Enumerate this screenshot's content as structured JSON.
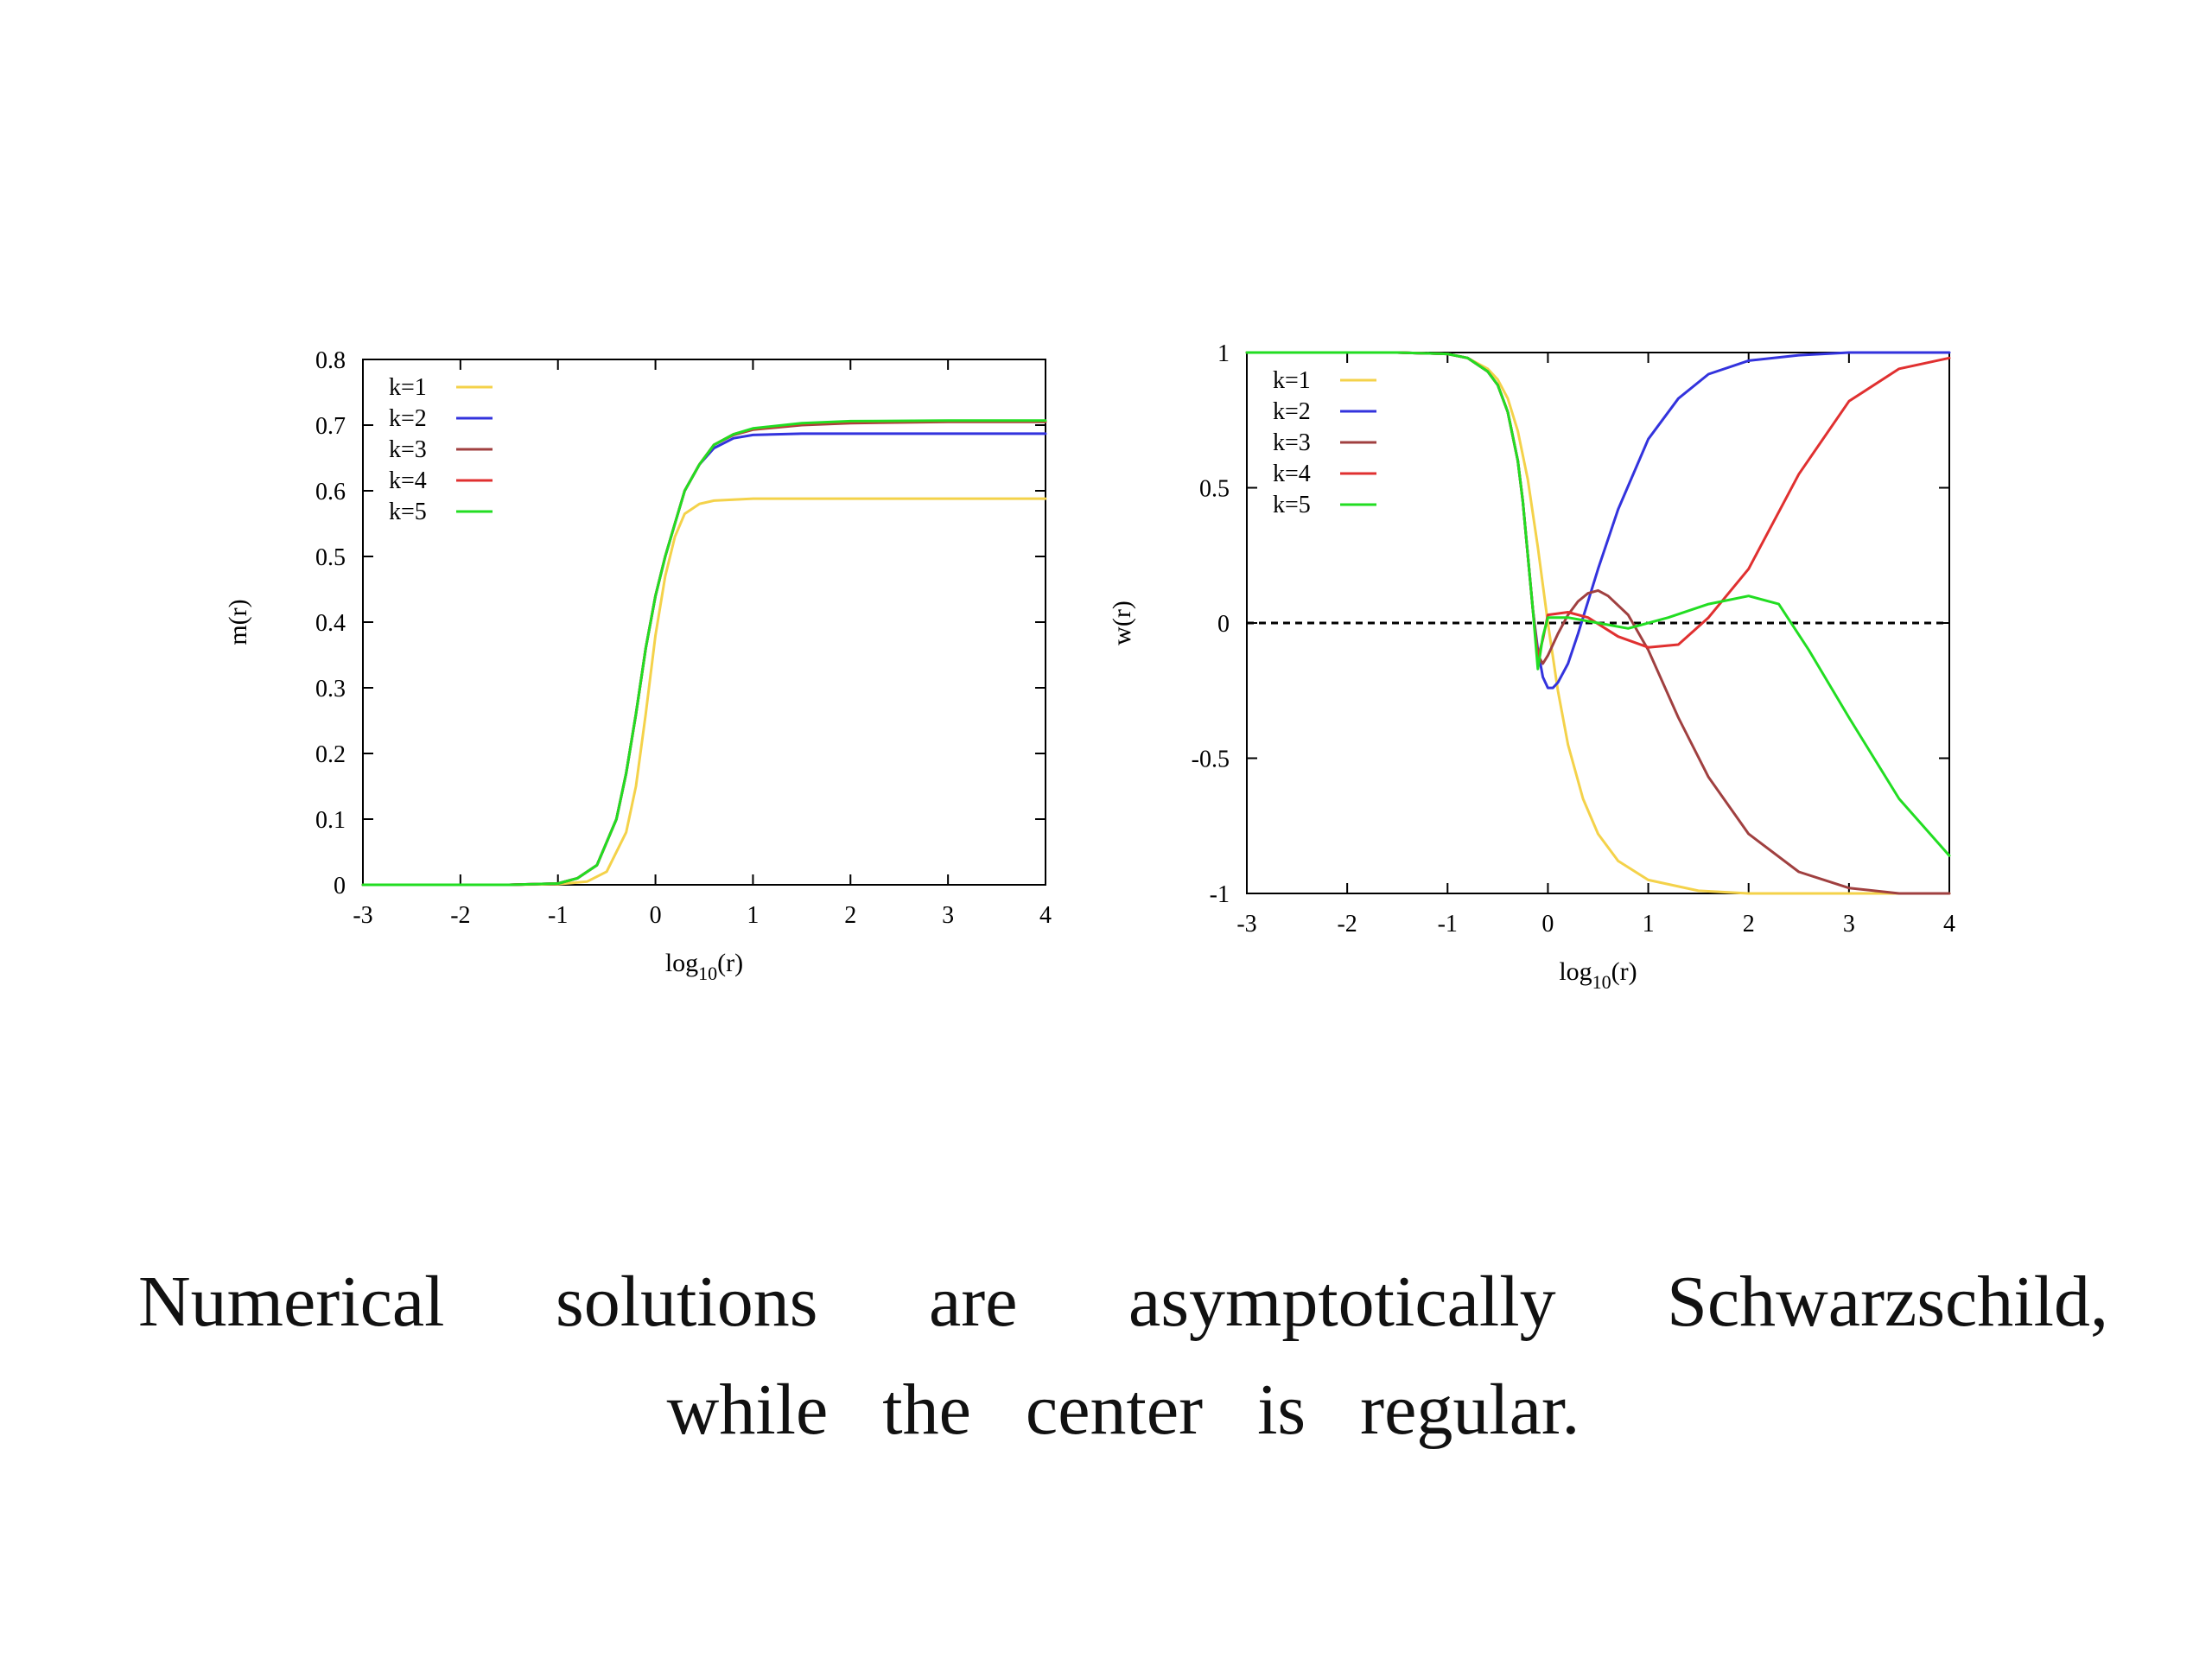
{
  "caption": {
    "line1": "Numerical solutions are asymptotically Schwarzschild,",
    "line2": "while the center is regular."
  },
  "chart_data": [
    {
      "type": "line",
      "xlabel": "log10(r)",
      "ylabel": "m(r)",
      "xlim": [
        -3,
        4
      ],
      "ylim": [
        0,
        0.8
      ],
      "xticks": [
        "-3",
        "-2",
        "-1",
        "0",
        "1",
        "2",
        "3",
        "4"
      ],
      "yticks": [
        "0",
        "0.1",
        "0.2",
        "0.3",
        "0.4",
        "0.5",
        "0.6",
        "0.7",
        "0.8"
      ],
      "grid": false,
      "legend_position": "top-left",
      "series": [
        {
          "name": "k=1",
          "color": "#f4d24a",
          "x": [
            -3,
            -1.5,
            -1,
            -0.7,
            -0.5,
            -0.3,
            -0.2,
            -0.1,
            0,
            0.1,
            0.2,
            0.3,
            0.45,
            0.6,
            1,
            2,
            3,
            4
          ],
          "y": [
            0,
            0,
            0.001,
            0.005,
            0.02,
            0.08,
            0.15,
            0.26,
            0.38,
            0.47,
            0.53,
            0.565,
            0.58,
            0.585,
            0.588,
            0.588,
            0.588,
            0.588
          ]
        },
        {
          "name": "k=2",
          "color": "#3333dd",
          "x": [
            -3,
            -1.5,
            -1,
            -0.8,
            -0.6,
            -0.4,
            -0.3,
            -0.2,
            -0.1,
            0,
            0.1,
            0.2,
            0.3,
            0.45,
            0.6,
            0.8,
            1,
            1.5,
            2,
            3,
            4
          ],
          "y": [
            0,
            0,
            0.002,
            0.01,
            0.03,
            0.1,
            0.17,
            0.26,
            0.36,
            0.44,
            0.5,
            0.55,
            0.6,
            0.64,
            0.665,
            0.68,
            0.685,
            0.687,
            0.687,
            0.687,
            0.687
          ]
        },
        {
          "name": "k=3",
          "color": "#a04040",
          "x": [
            -3,
            -1.5,
            -1,
            -0.8,
            -0.6,
            -0.4,
            -0.3,
            -0.2,
            -0.1,
            0,
            0.1,
            0.2,
            0.3,
            0.45,
            0.6,
            0.8,
            1,
            1.5,
            2,
            3,
            4
          ],
          "y": [
            0,
            0,
            0.002,
            0.01,
            0.03,
            0.1,
            0.17,
            0.26,
            0.36,
            0.44,
            0.5,
            0.55,
            0.6,
            0.64,
            0.67,
            0.685,
            0.693,
            0.7,
            0.703,
            0.705,
            0.705
          ]
        },
        {
          "name": "k=4",
          "color": "#e03030",
          "x": [
            -3,
            -1.5,
            -1,
            -0.8,
            -0.6,
            -0.4,
            -0.3,
            -0.2,
            -0.1,
            0,
            0.1,
            0.2,
            0.3,
            0.45,
            0.6,
            0.8,
            1,
            1.5,
            2,
            3,
            4
          ],
          "y": [
            0,
            0,
            0.002,
            0.01,
            0.03,
            0.1,
            0.17,
            0.26,
            0.36,
            0.44,
            0.5,
            0.55,
            0.6,
            0.64,
            0.67,
            0.686,
            0.694,
            0.702,
            0.705,
            0.706,
            0.706
          ]
        },
        {
          "name": "k=5",
          "color": "#22dd22",
          "x": [
            -3,
            -1.5,
            -1,
            -0.8,
            -0.6,
            -0.4,
            -0.3,
            -0.2,
            -0.1,
            0,
            0.1,
            0.2,
            0.3,
            0.45,
            0.6,
            0.8,
            1,
            1.5,
            2,
            3,
            4
          ],
          "y": [
            0,
            0,
            0.002,
            0.01,
            0.03,
            0.1,
            0.17,
            0.26,
            0.36,
            0.44,
            0.5,
            0.55,
            0.6,
            0.64,
            0.67,
            0.686,
            0.695,
            0.703,
            0.706,
            0.707,
            0.707
          ]
        }
      ]
    },
    {
      "type": "line",
      "xlabel": "log10(r)",
      "ylabel": "w(r)",
      "xlim": [
        -3,
        4
      ],
      "ylim": [
        -1,
        1
      ],
      "xticks": [
        "-3",
        "-2",
        "-1",
        "0",
        "1",
        "2",
        "3",
        "4"
      ],
      "yticks": [
        "-1",
        "-0.5",
        "0",
        "0.5",
        "1"
      ],
      "grid": false,
      "legend_position": "top-left",
      "zero_line": {
        "y": 0,
        "style": "dashed",
        "color": "#000000"
      },
      "series": [
        {
          "name": "k=1",
          "color": "#f4d24a",
          "x": [
            -3,
            -1.5,
            -1,
            -0.8,
            -0.6,
            -0.5,
            -0.4,
            -0.3,
            -0.2,
            -0.1,
            0,
            0.1,
            0.2,
            0.35,
            0.5,
            0.7,
            1,
            1.5,
            2,
            3,
            4
          ],
          "y": [
            1,
            1,
            0.995,
            0.98,
            0.94,
            0.9,
            0.83,
            0.71,
            0.53,
            0.28,
            0,
            -0.25,
            -0.45,
            -0.65,
            -0.78,
            -0.88,
            -0.95,
            -0.99,
            -1,
            -1,
            -1
          ]
        },
        {
          "name": "k=2",
          "color": "#3333dd",
          "x": [
            -3,
            -1.5,
            -1,
            -0.8,
            -0.6,
            -0.5,
            -0.4,
            -0.3,
            -0.25,
            -0.2,
            -0.15,
            -0.1,
            -0.05,
            0,
            0.05,
            0.1,
            0.2,
            0.3,
            0.5,
            0.7,
            1,
            1.3,
            1.6,
            2,
            2.5,
            3,
            3.5,
            4
          ],
          "y": [
            1,
            1,
            0.995,
            0.98,
            0.93,
            0.88,
            0.78,
            0.6,
            0.45,
            0.25,
            0.05,
            -0.1,
            -0.2,
            -0.24,
            -0.24,
            -0.22,
            -0.15,
            -0.04,
            0.2,
            0.42,
            0.68,
            0.83,
            0.92,
            0.97,
            0.99,
            1,
            1,
            1
          ]
        },
        {
          "name": "k=3",
          "color": "#a04040",
          "x": [
            -3,
            -1.5,
            -1,
            -0.8,
            -0.6,
            -0.5,
            -0.4,
            -0.3,
            -0.25,
            -0.2,
            -0.15,
            -0.1,
            -0.05,
            0,
            0.1,
            0.2,
            0.3,
            0.4,
            0.5,
            0.6,
            0.8,
            1,
            1.3,
            1.6,
            2,
            2.5,
            3,
            3.5,
            4
          ],
          "y": [
            1,
            1,
            0.995,
            0.98,
            0.93,
            0.88,
            0.78,
            0.6,
            0.45,
            0.25,
            0.05,
            -0.12,
            -0.15,
            -0.12,
            -0.04,
            0.03,
            0.08,
            0.11,
            0.12,
            0.1,
            0.03,
            -0.1,
            -0.35,
            -0.57,
            -0.78,
            -0.92,
            -0.98,
            -1,
            -1
          ]
        },
        {
          "name": "k=4",
          "color": "#e03030",
          "x": [
            -3,
            -1.5,
            -1,
            -0.8,
            -0.6,
            -0.5,
            -0.4,
            -0.3,
            -0.25,
            -0.2,
            -0.15,
            -0.1,
            -0.05,
            0,
            0.2,
            0.4,
            0.7,
            1,
            1.3,
            1.6,
            2,
            2.5,
            3,
            3.5,
            4
          ],
          "y": [
            1,
            1,
            0.995,
            0.98,
            0.93,
            0.88,
            0.78,
            0.6,
            0.45,
            0.25,
            0.05,
            -0.13,
            -0.06,
            0.03,
            0.04,
            0.02,
            -0.05,
            -0.09,
            -0.08,
            0.02,
            0.2,
            0.55,
            0.82,
            0.94,
            0.98
          ]
        },
        {
          "name": "k=5",
          "color": "#22dd22",
          "x": [
            -3,
            -1.5,
            -1,
            -0.8,
            -0.6,
            -0.5,
            -0.4,
            -0.3,
            -0.25,
            -0.2,
            -0.15,
            -0.1,
            -0.05,
            0,
            0.2,
            0.5,
            0.8,
            1.2,
            1.6,
            2,
            2.3,
            2.6,
            3,
            3.5,
            4
          ],
          "y": [
            1,
            1,
            0.995,
            0.98,
            0.93,
            0.88,
            0.78,
            0.6,
            0.45,
            0.25,
            0.05,
            -0.17,
            -0.05,
            0.02,
            0.02,
            0,
            -0.02,
            0.02,
            0.07,
            0.1,
            0.07,
            -0.1,
            -0.35,
            -0.65,
            -0.86
          ]
        }
      ]
    }
  ]
}
